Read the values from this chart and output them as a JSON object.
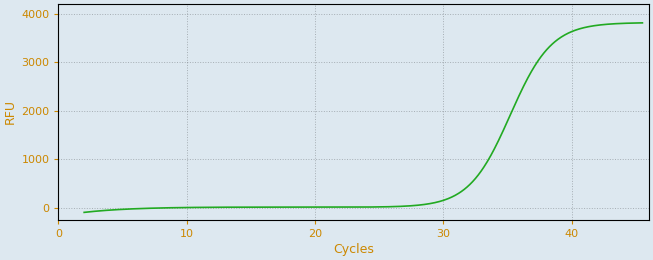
{
  "xlabel": "Cycles",
  "ylabel": "RFU",
  "line_color": "#22aa22",
  "line_width": 1.2,
  "background_color": "#dde8f0",
  "plot_bg_color": "#dde8f0",
  "grid_color": "#000000",
  "grid_alpha": 0.25,
  "tick_color": "#cc8800",
  "label_color": "#cc8800",
  "spine_color": "#000000",
  "xlim": [
    0,
    46
  ],
  "ylim": [
    -250,
    4200
  ],
  "xticks": [
    0,
    10,
    20,
    30,
    40
  ],
  "yticks": [
    0,
    1000,
    2000,
    3000,
    4000
  ],
  "sigmoid_L": 3820,
  "sigmoid_k": 0.62,
  "sigmoid_x0": 35.2,
  "x_start": 2.0,
  "x_end": 45.5,
  "early_dip": -100,
  "early_rise": 50
}
